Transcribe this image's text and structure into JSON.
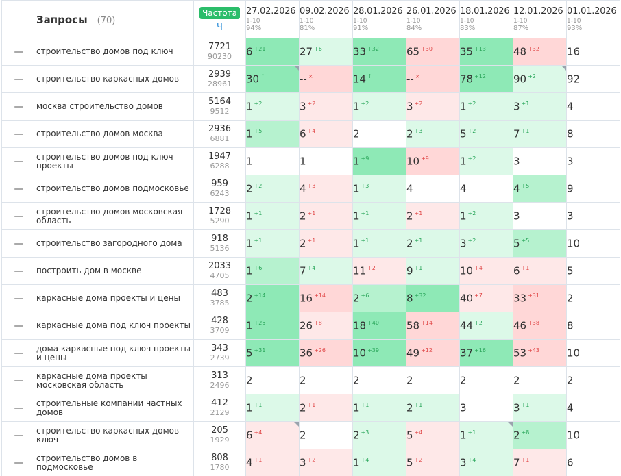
{
  "header": {
    "queries_title": "Запросы",
    "queries_count": "(70)",
    "freq_badge": "Частота",
    "freq_sub": "Ч",
    "dates": [
      {
        "label": "27.02.2026",
        "range": "1-10",
        "pct": "94%"
      },
      {
        "label": "09.02.2026",
        "range": "1-10",
        "pct": "81%"
      },
      {
        "label": "28.01.2026",
        "range": "1-10",
        "pct": "91%"
      },
      {
        "label": "26.01.2026",
        "range": "1-10",
        "pct": "84%"
      },
      {
        "label": "18.01.2026",
        "range": "1-10",
        "pct": "83%"
      },
      {
        "label": "12.01.2026",
        "range": "1-10",
        "pct": "87%"
      },
      {
        "label": "01.01.2026",
        "range": "1-10",
        "pct": "93%"
      }
    ]
  },
  "rows": [
    {
      "dash": "—",
      "query": "строительство домов под ключ",
      "freq": "7721",
      "freq2": "90230",
      "cells": [
        {
          "v": "6",
          "d": "+21",
          "c": "strong",
          "dir": "up"
        },
        {
          "v": "27",
          "d": "+6",
          "c": "light",
          "dir": "up"
        },
        {
          "v": "33",
          "d": "+32",
          "c": "strong",
          "dir": "up"
        },
        {
          "v": "65",
          "d": "+30",
          "c": "red",
          "dir": "down"
        },
        {
          "v": "35",
          "d": "+13",
          "c": "strong",
          "dir": "up"
        },
        {
          "v": "48",
          "d": "+32",
          "c": "red",
          "dir": "down"
        },
        {
          "v": "16",
          "d": "",
          "c": "white",
          "dir": ""
        }
      ]
    },
    {
      "dash": "—",
      "query": "строительство каркасных домов",
      "freq": "2939",
      "freq2": "28961",
      "cells": [
        {
          "v": "30",
          "d": "↑",
          "c": "strong",
          "dir": "up",
          "corner": true
        },
        {
          "v": "--",
          "d": "×",
          "c": "red",
          "dir": "down"
        },
        {
          "v": "14",
          "d": "↑",
          "c": "strong",
          "dir": "up"
        },
        {
          "v": "--",
          "d": "×",
          "c": "red",
          "dir": "down"
        },
        {
          "v": "78",
          "d": "+12",
          "c": "strong",
          "dir": "up"
        },
        {
          "v": "90",
          "d": "+2",
          "c": "light",
          "dir": "up",
          "corner": true
        },
        {
          "v": "92",
          "d": "",
          "c": "white",
          "dir": ""
        }
      ]
    },
    {
      "dash": "—",
      "query": "москва строительство домов",
      "freq": "5164",
      "freq2": "9512",
      "cells": [
        {
          "v": "1",
          "d": "+2",
          "c": "light",
          "dir": "up"
        },
        {
          "v": "3",
          "d": "+2",
          "c": "lred",
          "dir": "down"
        },
        {
          "v": "1",
          "d": "+2",
          "c": "light",
          "dir": "up"
        },
        {
          "v": "3",
          "d": "+2",
          "c": "lred",
          "dir": "down"
        },
        {
          "v": "1",
          "d": "+2",
          "c": "light",
          "dir": "up"
        },
        {
          "v": "3",
          "d": "+1",
          "c": "light",
          "dir": "up"
        },
        {
          "v": "4",
          "d": "",
          "c": "white",
          "dir": ""
        }
      ]
    },
    {
      "dash": "—",
      "query": "строительство домов москва",
      "freq": "2936",
      "freq2": "6881",
      "cells": [
        {
          "v": "1",
          "d": "+5",
          "c": "med",
          "dir": "up"
        },
        {
          "v": "6",
          "d": "+4",
          "c": "lred",
          "dir": "down"
        },
        {
          "v": "2",
          "d": "",
          "c": "white",
          "dir": ""
        },
        {
          "v": "2",
          "d": "+3",
          "c": "light",
          "dir": "up"
        },
        {
          "v": "5",
          "d": "+2",
          "c": "light",
          "dir": "up"
        },
        {
          "v": "7",
          "d": "+1",
          "c": "light",
          "dir": "up"
        },
        {
          "v": "8",
          "d": "",
          "c": "white",
          "dir": ""
        }
      ]
    },
    {
      "dash": "—",
      "query": "строительство домов под ключ проекты",
      "freq": "1947",
      "freq2": "6288",
      "cells": [
        {
          "v": "1",
          "d": "",
          "c": "white",
          "dir": ""
        },
        {
          "v": "1",
          "d": "",
          "c": "white",
          "dir": ""
        },
        {
          "v": "1",
          "d": "+9",
          "c": "strong",
          "dir": "up"
        },
        {
          "v": "10",
          "d": "+9",
          "c": "red",
          "dir": "down"
        },
        {
          "v": "1",
          "d": "+2",
          "c": "light",
          "dir": "up"
        },
        {
          "v": "3",
          "d": "",
          "c": "white",
          "dir": ""
        },
        {
          "v": "3",
          "d": "",
          "c": "white",
          "dir": ""
        }
      ]
    },
    {
      "dash": "—",
      "query": "строительство домов подмосковье",
      "freq": "959",
      "freq2": "6243",
      "cells": [
        {
          "v": "2",
          "d": "+2",
          "c": "light",
          "dir": "up"
        },
        {
          "v": "4",
          "d": "+3",
          "c": "lred",
          "dir": "down"
        },
        {
          "v": "1",
          "d": "+3",
          "c": "light",
          "dir": "up"
        },
        {
          "v": "4",
          "d": "",
          "c": "white",
          "dir": ""
        },
        {
          "v": "4",
          "d": "",
          "c": "white",
          "dir": ""
        },
        {
          "v": "4",
          "d": "+5",
          "c": "med",
          "dir": "up"
        },
        {
          "v": "9",
          "d": "",
          "c": "white",
          "dir": ""
        }
      ]
    },
    {
      "dash": "—",
      "query": "строительство домов московская область",
      "freq": "1728",
      "freq2": "5290",
      "cells": [
        {
          "v": "1",
          "d": "+1",
          "c": "light",
          "dir": "up"
        },
        {
          "v": "2",
          "d": "+1",
          "c": "lred",
          "dir": "down"
        },
        {
          "v": "1",
          "d": "+1",
          "c": "light",
          "dir": "up"
        },
        {
          "v": "2",
          "d": "+1",
          "c": "lred",
          "dir": "down"
        },
        {
          "v": "1",
          "d": "+2",
          "c": "light",
          "dir": "up"
        },
        {
          "v": "3",
          "d": "",
          "c": "white",
          "dir": ""
        },
        {
          "v": "3",
          "d": "",
          "c": "white",
          "dir": ""
        }
      ]
    },
    {
      "dash": "—",
      "query": "строительство загородного дома",
      "freq": "918",
      "freq2": "5136",
      "cells": [
        {
          "v": "1",
          "d": "+1",
          "c": "light",
          "dir": "up"
        },
        {
          "v": "2",
          "d": "+1",
          "c": "lred",
          "dir": "down"
        },
        {
          "v": "1",
          "d": "+1",
          "c": "light",
          "dir": "up"
        },
        {
          "v": "2",
          "d": "+1",
          "c": "light",
          "dir": "up"
        },
        {
          "v": "3",
          "d": "+2",
          "c": "light",
          "dir": "up"
        },
        {
          "v": "5",
          "d": "+5",
          "c": "med",
          "dir": "up"
        },
        {
          "v": "10",
          "d": "",
          "c": "white",
          "dir": ""
        }
      ]
    },
    {
      "dash": "—",
      "query": "построить дом в москве",
      "freq": "2033",
      "freq2": "4705",
      "cells": [
        {
          "v": "1",
          "d": "+6",
          "c": "med",
          "dir": "up"
        },
        {
          "v": "7",
          "d": "+4",
          "c": "light",
          "dir": "up"
        },
        {
          "v": "11",
          "d": "+2",
          "c": "lred",
          "dir": "down"
        },
        {
          "v": "9",
          "d": "+1",
          "c": "light",
          "dir": "up"
        },
        {
          "v": "10",
          "d": "+4",
          "c": "lred",
          "dir": "down"
        },
        {
          "v": "6",
          "d": "+1",
          "c": "lred",
          "dir": "down"
        },
        {
          "v": "5",
          "d": "",
          "c": "white",
          "dir": ""
        }
      ]
    },
    {
      "dash": "—",
      "query": "каркасные дома проекты и цены",
      "freq": "483",
      "freq2": "3785",
      "cells": [
        {
          "v": "2",
          "d": "+14",
          "c": "strong",
          "dir": "up"
        },
        {
          "v": "16",
          "d": "+14",
          "c": "red",
          "dir": "down"
        },
        {
          "v": "2",
          "d": "+6",
          "c": "med",
          "dir": "up"
        },
        {
          "v": "8",
          "d": "+32",
          "c": "strong",
          "dir": "up"
        },
        {
          "v": "40",
          "d": "+7",
          "c": "lred",
          "dir": "down"
        },
        {
          "v": "33",
          "d": "+31",
          "c": "red",
          "dir": "down"
        },
        {
          "v": "2",
          "d": "",
          "c": "white",
          "dir": ""
        }
      ]
    },
    {
      "dash": "—",
      "query": "каркасные дома под ключ проекты",
      "freq": "428",
      "freq2": "3709",
      "cells": [
        {
          "v": "1",
          "d": "+25",
          "c": "strong",
          "dir": "up"
        },
        {
          "v": "26",
          "d": "+8",
          "c": "lred",
          "dir": "down"
        },
        {
          "v": "18",
          "d": "+40",
          "c": "strong",
          "dir": "up"
        },
        {
          "v": "58",
          "d": "+14",
          "c": "red",
          "dir": "down"
        },
        {
          "v": "44",
          "d": "+2",
          "c": "light",
          "dir": "up"
        },
        {
          "v": "46",
          "d": "+38",
          "c": "red",
          "dir": "down"
        },
        {
          "v": "8",
          "d": "",
          "c": "white",
          "dir": ""
        }
      ]
    },
    {
      "dash": "—",
      "query": "дома каркасные под ключ проекты и цены",
      "freq": "343",
      "freq2": "2739",
      "cells": [
        {
          "v": "5",
          "d": "+31",
          "c": "strong",
          "dir": "up"
        },
        {
          "v": "36",
          "d": "+26",
          "c": "red",
          "dir": "down"
        },
        {
          "v": "10",
          "d": "+39",
          "c": "strong",
          "dir": "up"
        },
        {
          "v": "49",
          "d": "+12",
          "c": "red",
          "dir": "down"
        },
        {
          "v": "37",
          "d": "+16",
          "c": "strong",
          "dir": "up"
        },
        {
          "v": "53",
          "d": "+43",
          "c": "red",
          "dir": "down"
        },
        {
          "v": "10",
          "d": "",
          "c": "white",
          "dir": ""
        }
      ]
    },
    {
      "dash": "—",
      "query": "каркасные дома проекты московская область",
      "freq": "313",
      "freq2": "2496",
      "cells": [
        {
          "v": "2",
          "d": "",
          "c": "white",
          "dir": ""
        },
        {
          "v": "2",
          "d": "",
          "c": "white",
          "dir": ""
        },
        {
          "v": "2",
          "d": "",
          "c": "white",
          "dir": ""
        },
        {
          "v": "2",
          "d": "",
          "c": "white",
          "dir": ""
        },
        {
          "v": "2",
          "d": "",
          "c": "white",
          "dir": ""
        },
        {
          "v": "2",
          "d": "",
          "c": "white",
          "dir": ""
        },
        {
          "v": "2",
          "d": "",
          "c": "white",
          "dir": ""
        }
      ]
    },
    {
      "dash": "—",
      "query": "строительные компании частных домов",
      "freq": "412",
      "freq2": "2129",
      "cells": [
        {
          "v": "1",
          "d": "+1",
          "c": "light",
          "dir": "up"
        },
        {
          "v": "2",
          "d": "+1",
          "c": "lred",
          "dir": "down"
        },
        {
          "v": "1",
          "d": "+1",
          "c": "light",
          "dir": "up"
        },
        {
          "v": "2",
          "d": "+1",
          "c": "light",
          "dir": "up"
        },
        {
          "v": "3",
          "d": "",
          "c": "white",
          "dir": ""
        },
        {
          "v": "3",
          "d": "+1",
          "c": "light",
          "dir": "up"
        },
        {
          "v": "4",
          "d": "",
          "c": "white",
          "dir": ""
        }
      ]
    },
    {
      "dash": "—",
      "query": "строительство каркасных домов ключ",
      "freq": "205",
      "freq2": "1929",
      "cells": [
        {
          "v": "6",
          "d": "+4",
          "c": "lred",
          "dir": "down",
          "corner": true
        },
        {
          "v": "2",
          "d": "",
          "c": "white",
          "dir": ""
        },
        {
          "v": "2",
          "d": "+3",
          "c": "light",
          "dir": "up"
        },
        {
          "v": "5",
          "d": "+4",
          "c": "lred",
          "dir": "down"
        },
        {
          "v": "1",
          "d": "+1",
          "c": "light",
          "dir": "up",
          "corner": true
        },
        {
          "v": "2",
          "d": "+8",
          "c": "med",
          "dir": "up"
        },
        {
          "v": "10",
          "d": "",
          "c": "white",
          "dir": ""
        }
      ]
    },
    {
      "dash": "—",
      "query": "строительство домов в подмосковье",
      "freq": "808",
      "freq2": "1780",
      "cells": [
        {
          "v": "4",
          "d": "+1",
          "c": "lred",
          "dir": "down"
        },
        {
          "v": "3",
          "d": "+2",
          "c": "lred",
          "dir": "down"
        },
        {
          "v": "1",
          "d": "+4",
          "c": "light",
          "dir": "up"
        },
        {
          "v": "5",
          "d": "+2",
          "c": "lred",
          "dir": "down"
        },
        {
          "v": "3",
          "d": "+4",
          "c": "light",
          "dir": "up"
        },
        {
          "v": "7",
          "d": "+1",
          "c": "lred",
          "dir": "down"
        },
        {
          "v": "6",
          "d": "",
          "c": "white",
          "dir": ""
        }
      ]
    }
  ]
}
